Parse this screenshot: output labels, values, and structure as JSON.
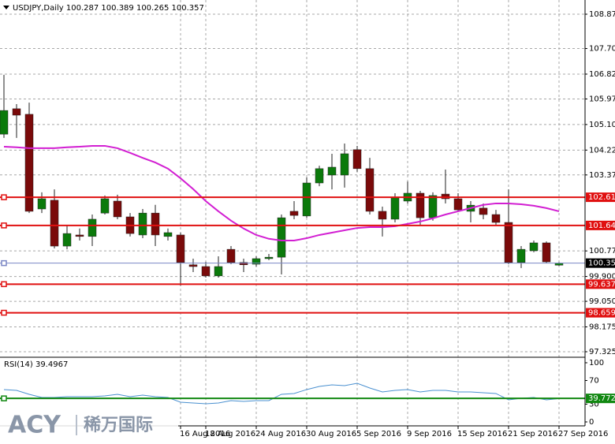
{
  "chart_data": [
    {
      "type": "candlestick",
      "title": "USDJPY,Daily  100.287 100.389 100.265 100.357",
      "categories": [
        null,
        null,
        null,
        null,
        null,
        null,
        null,
        null,
        null,
        null,
        null,
        null,
        null,
        null,
        "16 Aug 2016",
        null,
        "18 Aug 2016",
        null,
        null,
        null,
        "24 Aug 2016",
        null,
        null,
        null,
        "30 Aug 2016",
        null,
        null,
        null,
        "5 Sep 2016",
        null,
        null,
        null,
        "9 Sep 2016",
        null,
        null,
        null,
        "15 Sep 2016",
        null,
        null,
        null,
        "21 Sep 2016",
        null,
        null,
        null,
        "27 Sep 2016"
      ],
      "open": [
        104.77,
        105.64,
        105.45,
        102.21,
        102.51,
        100.94,
        101.32,
        101.27,
        102.07,
        102.48,
        101.94,
        101.32,
        102.07,
        101.27,
        101.32,
        100.3,
        100.24,
        99.92,
        100.83,
        100.38,
        100.32,
        100.51,
        100.56,
        102.13,
        101.97,
        103.1,
        103.37,
        103.37,
        104.24,
        103.59,
        102.13,
        101.86,
        102.48,
        102.75,
        101.91,
        102.72,
        102.56,
        102.13,
        102.24,
        102.02,
        101.75,
        100.38,
        100.78,
        101.05,
        100.287
      ],
      "high": [
        106.8,
        105.8,
        105.85,
        102.78,
        102.88,
        101.67,
        101.54,
        102.02,
        102.67,
        102.7,
        102.07,
        102.21,
        102.35,
        101.54,
        101.4,
        100.51,
        100.4,
        100.59,
        100.94,
        100.51,
        100.59,
        100.67,
        102.02,
        102.48,
        103.29,
        103.69,
        104.1,
        104.45,
        104.37,
        103.96,
        102.29,
        102.75,
        103.15,
        102.83,
        102.78,
        103.56,
        102.75,
        102.48,
        102.4,
        102.18,
        102.88,
        100.94,
        101.13,
        101.1,
        100.389
      ],
      "low": [
        104.64,
        104.64,
        102.07,
        102.07,
        100.86,
        100.83,
        101.13,
        100.94,
        102.02,
        101.86,
        101.27,
        101.21,
        100.94,
        101.13,
        99.59,
        100.05,
        99.86,
        99.86,
        100.32,
        100.05,
        100.24,
        100.46,
        99.97,
        101.86,
        101.91,
        102.99,
        102.88,
        102.94,
        103.48,
        102.02,
        101.27,
        101.75,
        102.4,
        101.64,
        101.81,
        102.4,
        102.13,
        101.75,
        101.86,
        101.67,
        100.32,
        100.19,
        100.73,
        100.35,
        100.265
      ],
      "close": [
        105.58,
        105.42,
        102.13,
        102.56,
        100.94,
        101.37,
        101.27,
        101.86,
        102.56,
        101.94,
        101.37,
        102.07,
        101.32,
        101.4,
        100.38,
        100.24,
        99.92,
        100.24,
        100.38,
        100.3,
        100.51,
        100.56,
        101.91,
        101.99,
        103.1,
        103.59,
        103.64,
        104.1,
        103.59,
        102.13,
        101.86,
        102.61,
        102.75,
        101.91,
        102.67,
        102.56,
        102.18,
        102.34,
        102.02,
        101.75,
        100.38,
        100.83,
        101.05,
        100.4,
        100.357
      ],
      "up_color": "#0b7a0b",
      "down_color": "#7a0a0a",
      "ma": {
        "color": "#d21fd2",
        "values": [
          104.34,
          104.32,
          104.29,
          104.29,
          104.29,
          104.32,
          104.34,
          104.37,
          104.37,
          104.29,
          104.13,
          103.96,
          103.8,
          103.59,
          103.26,
          102.89,
          102.48,
          102.13,
          101.81,
          101.54,
          101.32,
          101.19,
          101.13,
          101.13,
          101.21,
          101.32,
          101.4,
          101.48,
          101.56,
          101.59,
          101.59,
          101.62,
          101.7,
          101.78,
          101.89,
          102.02,
          102.13,
          102.24,
          102.35,
          102.4,
          102.4,
          102.37,
          102.32,
          102.24,
          102.13
        ]
      },
      "levels": [
        {
          "value": 102.611,
          "color": "#e01010"
        },
        {
          "value": 101.646,
          "color": "#e01010"
        },
        {
          "value": 100.357,
          "color": "#7a86c4",
          "label_color": "#000000"
        },
        {
          "value": 99.637,
          "color": "#e01010"
        },
        {
          "value": 98.659,
          "color": "#e01010"
        }
      ],
      "ylim": [
        97.163,
        109.226
      ],
      "yticks": [
        108.875,
        {
          "value": 107.7,
          "label": "107.700"
        },
        106.825,
        105.975,
        {
          "value": 105.1,
          "label": "105.100"
        },
        104.225,
        103.375,
        100.775,
        {
          "value": 99.9,
          "label": "99.900"
        },
        {
          "value": 99.05,
          "label": "99.050"
        },
        98.175,
        97.325
      ],
      "grid": true
    },
    {
      "type": "line",
      "title": "RSI(14) 39.4967",
      "color": "#4a90d0",
      "values": [
        54.7,
        53.3,
        46.7,
        41.3,
        41.3,
        42.7,
        42.7,
        42.7,
        44,
        46.7,
        42.7,
        45.3,
        42.7,
        41.3,
        33.3,
        32,
        30.7,
        32,
        36,
        34.7,
        36,
        36,
        46.7,
        48,
        54.7,
        60,
        62.7,
        61.3,
        65.3,
        57.3,
        50.7,
        53.3,
        54.7,
        50.7,
        53.3,
        53.3,
        50.7,
        50.7,
        49.3,
        48,
        37.3,
        40,
        41.3,
        37.3,
        39.4967
      ],
      "levels": [
        {
          "value": 39.7727,
          "color": "#118811"
        }
      ],
      "ylim": [
        -6.67,
        105.3
      ],
      "yticks": [
        100,
        70,
        30,
        0
      ]
    }
  ],
  "logo": {
    "brand": "ACY",
    "name": "稀万国际"
  }
}
